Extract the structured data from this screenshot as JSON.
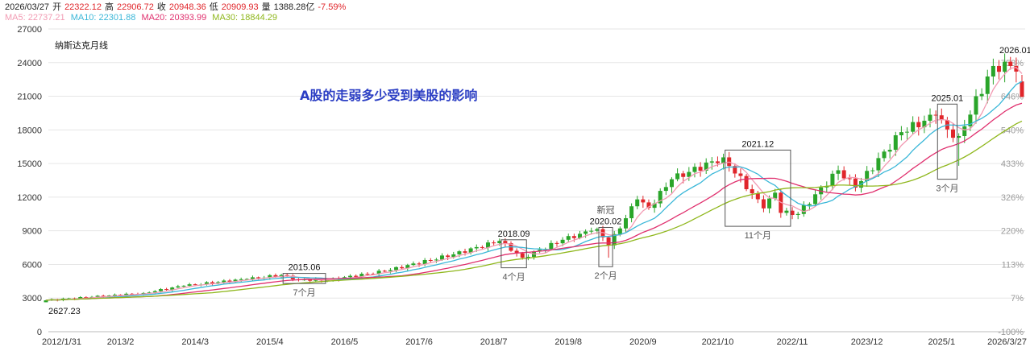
{
  "header": {
    "date": "2026/03/27",
    "open_label": "开",
    "open": "22322.12",
    "high_label": "高",
    "high": "22906.72",
    "close_label": "收",
    "close": "20948.36",
    "low_label": "低",
    "low": "20909.93",
    "volume_label": "量",
    "volume": "1388.28亿",
    "change": "-7.59%"
  },
  "ma_legend": [
    {
      "label": "MA5: 22737.21",
      "color": "#f29bb3"
    },
    {
      "label": "MA10: 22301.88",
      "color": "#3ab7d8"
    },
    {
      "label": "MA20: 20393.99",
      "color": "#e0306e"
    },
    {
      "label": "MA30: 18844.29",
      "color": "#8fb71c"
    }
  ],
  "chart_data": {
    "type": "candlestick",
    "title": "纳斯达克月线",
    "annotation_headline": "A股的走弱多少受到美股的影响",
    "y_ticks": [
      0,
      3000,
      6000,
      9000,
      12000,
      15000,
      18000,
      21000,
      24000,
      27000
    ],
    "y_tick_labels": [
      "0",
      "3000",
      "6000",
      "9000",
      "12000",
      "15000",
      "18000",
      "21000",
      "24000",
      "27000"
    ],
    "ylim": [
      0,
      27000
    ],
    "right_axis_labels": [
      "-100%",
      "7%",
      "113%",
      "220%",
      "326%",
      "433%",
      "540%",
      "646%",
      "753%"
    ],
    "x_tick_labels": [
      "2012/1/31",
      "2013/2",
      "2014/3",
      "2015/4",
      "2016/5",
      "2017/6",
      "2018/7",
      "2019/8",
      "2020/9",
      "2021/10",
      "2022/11",
      "2023/12",
      "2025/1",
      "2026/3/27"
    ],
    "min_label": "2627.23",
    "max_label": "2026.01",
    "colors": {
      "up": "#2aa52a",
      "down": "#e0262b",
      "ma5": "#f29bb3",
      "ma10": "#3ab7d8",
      "ma20": "#e0306e",
      "ma30": "#8fb71c",
      "headline": "#2b3ec4"
    },
    "anchors": [
      [
        "2012-01",
        2800
      ],
      [
        "2012-09",
        3100
      ],
      [
        "2013-06",
        3450
      ],
      [
        "2014-01",
        4100
      ],
      [
        "2014-12",
        4700
      ],
      [
        "2015-06",
        5050
      ],
      [
        "2015-09",
        4650
      ],
      [
        "2016-02",
        4600
      ],
      [
        "2016-12",
        5400
      ],
      [
        "2017-12",
        6900
      ],
      [
        "2018-08",
        8100
      ],
      [
        "2018-12",
        6600
      ],
      [
        "2019-07",
        8200
      ],
      [
        "2019-12",
        9000
      ],
      [
        "2020-01",
        9150
      ],
      [
        "2020-03",
        7700
      ],
      [
        "2020-08",
        11800
      ],
      [
        "2020-10",
        11050
      ],
      [
        "2021-02",
        13600
      ],
      [
        "2021-11",
        15550
      ],
      [
        "2022-06",
        11000
      ],
      [
        "2022-08",
        12400
      ],
      [
        "2022-09",
        10600
      ],
      [
        "2022-12",
        10500
      ],
      [
        "2023-07",
        14400
      ],
      [
        "2023-10",
        12850
      ],
      [
        "2024-06",
        17800
      ],
      [
        "2024-12",
        19300
      ],
      [
        "2025-03",
        17300
      ],
      [
        "2025-04",
        17450
      ],
      [
        "2025-10",
        23700
      ],
      [
        "2026-01",
        23700
      ],
      [
        "2026-02",
        23200
      ],
      [
        "2026-03",
        20948
      ]
    ],
    "annotations": [
      {
        "label": "2015.06",
        "duration": "7个月",
        "from": "2015-07",
        "to": "2016-01",
        "low": 4300,
        "high": 5200
      },
      {
        "label": "2018.09",
        "duration": "4个月",
        "from": "2018-09",
        "to": "2018-12",
        "low": 5700,
        "high": 8200
      },
      {
        "label": "新冠",
        "label2": "2020.02",
        "duration": "2个月",
        "from": "2020-02",
        "to": "2020-03",
        "low": 5800,
        "high": 9300
      },
      {
        "label": "2021.12",
        "duration": "11个月",
        "from": "2021-12",
        "to": "2022-10",
        "low": 9400,
        "high": 16200
      },
      {
        "label": "2025.01",
        "duration": "3个月",
        "from": "2025-01",
        "to": "2025-03",
        "low": 13600,
        "high": 20300
      }
    ]
  }
}
